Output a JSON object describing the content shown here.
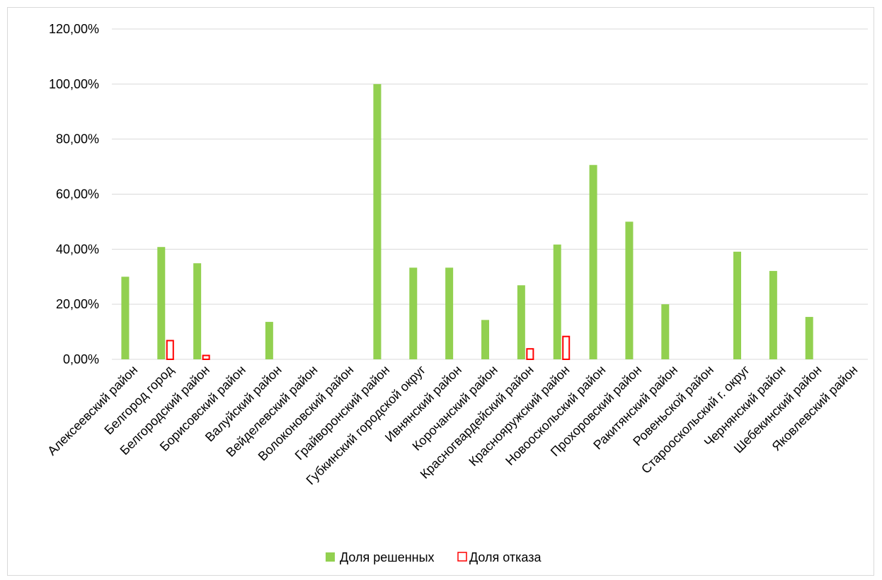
{
  "chart_data": {
    "type": "bar",
    "categories": [
      "Алексеевский район",
      "Белгород город",
      "Белгородский район",
      "Борисовский район",
      "Валуйский район",
      "Вейделевский район",
      "Волоконовский район",
      "Грайворонский район",
      "Губкинский городской округ",
      "Ивнянский район",
      "Корочанский район",
      "Красногвардейский район",
      "Краснояружский район",
      "Новооскольский район",
      "Прохоровский район",
      "Ракитянский район",
      "Ровеньской район",
      "Старооскольский г. округ",
      "Чернянский район",
      "Шебекинский район",
      "Яковлевский район"
    ],
    "series": [
      {
        "name": "Доля решенных",
        "color": "#92d050",
        "style": "filled",
        "values": [
          30.0,
          40.8,
          34.9,
          0,
          13.6,
          0,
          0,
          100.0,
          33.3,
          33.3,
          14.3,
          26.9,
          41.7,
          70.6,
          50.0,
          20.0,
          0,
          39.1,
          32.1,
          15.4,
          0
        ]
      },
      {
        "name": "Доля отказа",
        "color": "#ff0000",
        "style": "outline",
        "values": [
          0,
          6.8,
          1.4,
          0,
          0,
          0,
          0,
          0,
          0,
          0,
          0,
          3.8,
          8.3,
          0,
          0,
          0,
          0,
          0,
          0,
          0,
          0
        ]
      }
    ],
    "title": "",
    "xlabel": "",
    "ylabel": "",
    "ylim": [
      0,
      120
    ],
    "yticks": [
      "0,00%",
      "20,00%",
      "40,00%",
      "60,00%",
      "80,00%",
      "100,00%",
      "120,00%"
    ],
    "grid": true,
    "legend": "bottom"
  }
}
